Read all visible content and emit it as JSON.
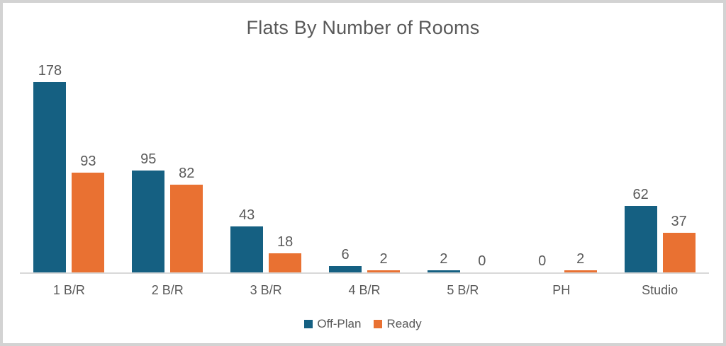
{
  "chart_data": {
    "type": "bar",
    "title": "Flats By Number of Rooms",
    "categories": [
      "1 B/R",
      "2 B/R",
      "3 B/R",
      "4 B/R",
      "5 B/R",
      "PH",
      "Studio"
    ],
    "series": [
      {
        "name": "Off-Plan",
        "color": "#156082",
        "values": [
          178,
          95,
          43,
          6,
          2,
          0,
          62
        ]
      },
      {
        "name": "Ready",
        "color": "#E97132",
        "values": [
          93,
          82,
          18,
          2,
          0,
          2,
          37
        ]
      }
    ],
    "xlabel": "",
    "ylabel": "",
    "ylim": [
      0,
      185
    ],
    "grid": false,
    "data_labels": true,
    "legend_position": "bottom"
  },
  "colors": {
    "title_text": "#595959",
    "label_text": "#595959",
    "axis_line": "#d9d9d9",
    "frame_border": "#d3d3d3",
    "background": "#ffffff"
  }
}
